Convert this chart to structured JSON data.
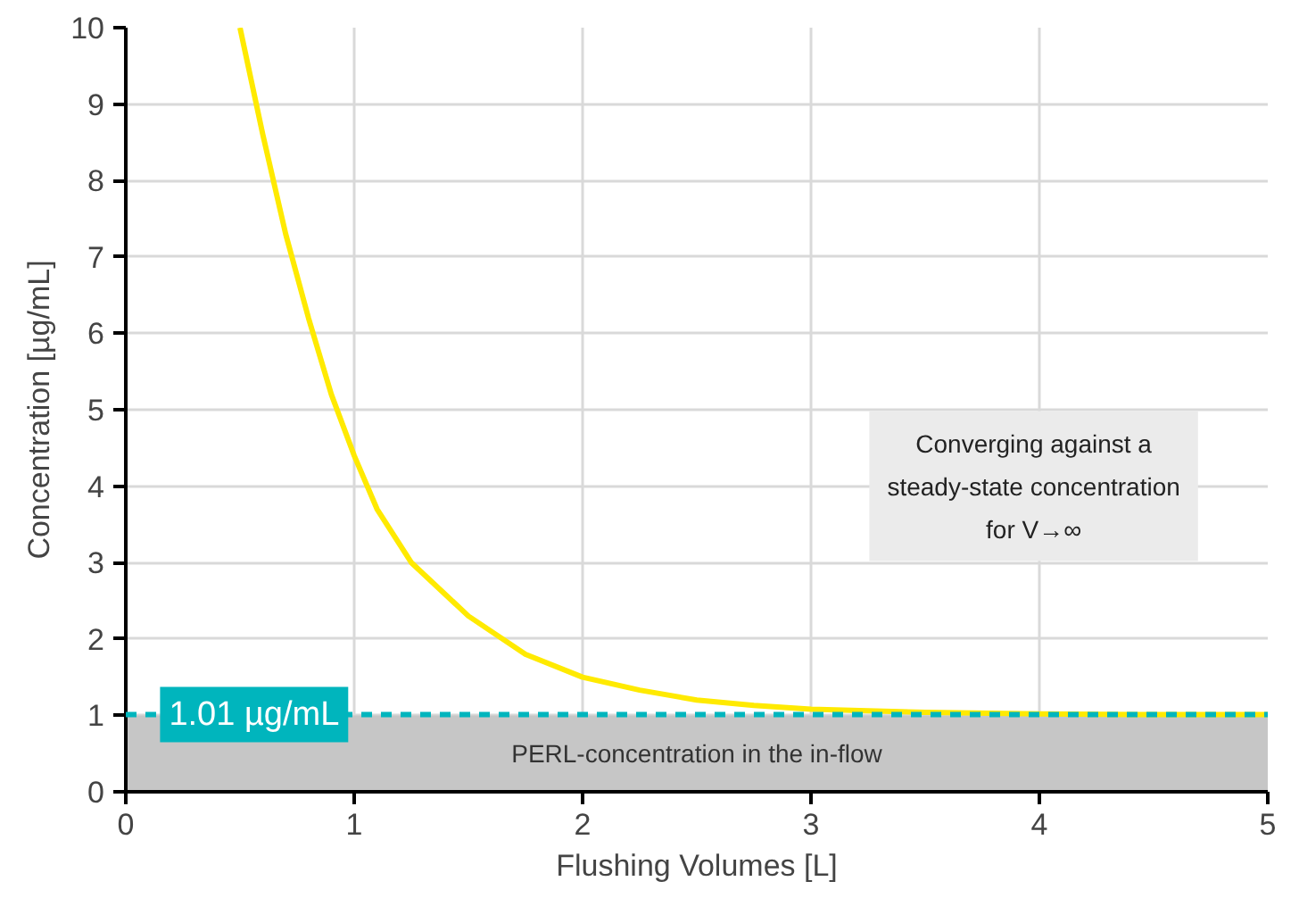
{
  "chart_data": {
    "type": "line",
    "xlabel": "Flushing Volumes [L]",
    "ylabel": "Concentration [µg/mL]",
    "x": [
      0.5,
      0.6,
      0.7,
      0.8,
      0.9,
      1.0,
      1.1,
      1.25,
      1.5,
      1.75,
      2.0,
      2.25,
      2.5,
      2.75,
      3.0,
      3.5,
      4.0,
      4.5,
      5.0
    ],
    "series": [
      {
        "color": "#ffea00",
        "values": [
          10,
          8.6,
          7.3,
          6.2,
          5.2,
          4.4,
          3.7,
          3.0,
          2.3,
          1.8,
          1.5,
          1.33,
          1.2,
          1.13,
          1.08,
          1.04,
          1.02,
          1.01,
          1.01
        ]
      }
    ],
    "xlim": [
      0,
      5
    ],
    "ylim": [
      0,
      10
    ],
    "xticks": [
      0,
      1,
      2,
      3,
      4,
      5
    ],
    "yticks": [
      0,
      1,
      2,
      3,
      4,
      5,
      6,
      7,
      8,
      9,
      10
    ],
    "grid": true,
    "ref_lines": [
      {
        "axis": "y",
        "value": 1.01,
        "label": "1.01 µg/mL",
        "color": "#00b5bd",
        "line_style": "dashed"
      }
    ],
    "bands": [
      {
        "axis": "y",
        "from": 0,
        "to": 1,
        "label": "PERL-concentration in the in-flow",
        "color": "#c6c6c6"
      }
    ],
    "annotations": [
      "Converging against a\nsteady-state concentration\nfor V→∞"
    ]
  }
}
